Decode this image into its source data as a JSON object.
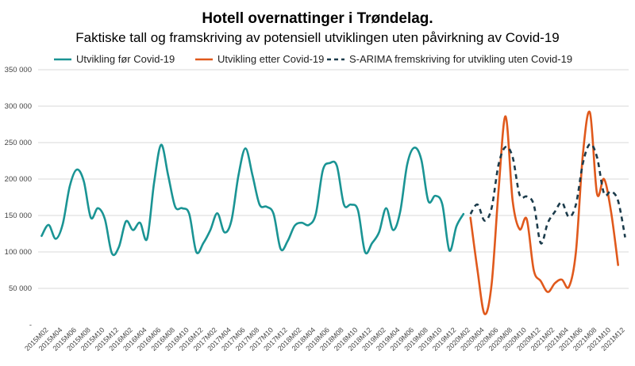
{
  "chart_data": {
    "type": "line",
    "title": "Hotell overnattinger i Trøndelag.",
    "subtitle": "Faktiske tall og framskriving av potensiell utviklingen uten påvirkning av Covid-19",
    "xlabel": "",
    "ylabel": "",
    "ylim": [
      0,
      350000
    ],
    "yticks": [
      0,
      50000,
      100000,
      150000,
      200000,
      250000,
      300000,
      350000
    ],
    "ytick_labels": [
      "-",
      "50 000",
      "100 000",
      "150 000",
      "200 000",
      "250 000",
      "300 000",
      "350 000"
    ],
    "grid": true,
    "legend_position": "top",
    "colors": {
      "before": "#1a9494",
      "after": "#e0591c",
      "forecast": "#1b3b4b",
      "grid": "#d9d9d9"
    },
    "x_categories": [
      "2015M01",
      "2015M02",
      "2015M03",
      "2015M04",
      "2015M05",
      "2015M06",
      "2015M07",
      "2015M08",
      "2015M09",
      "2015M10",
      "2015M11",
      "2015M12",
      "2016M01",
      "2016M02",
      "2016M03",
      "2016M04",
      "2016M05",
      "2016M06",
      "2016M07",
      "2016M08",
      "2016M09",
      "2016M10",
      "2016M11",
      "2016M12",
      "2017M01",
      "2017M02",
      "2017M03",
      "2017M04",
      "2017M05",
      "2017M06",
      "2017M07",
      "2017M08",
      "2017M09",
      "2017M10",
      "2017M11",
      "2017M12",
      "2018M01",
      "2018M02",
      "2018M03",
      "2018M04",
      "2018M05",
      "2018M06",
      "2018M07",
      "2018M08",
      "2018M09",
      "2018M10",
      "2018M11",
      "2018M12",
      "2019M01",
      "2019M02",
      "2019M03",
      "2019M04",
      "2019M05",
      "2019M06",
      "2019M07",
      "2019M08",
      "2019M09",
      "2019M10",
      "2019M11",
      "2019M12",
      "2020M01",
      "2020M02",
      "2020M03",
      "2020M04",
      "2020M05",
      "2020M06",
      "2020M07",
      "2020M08",
      "2020M09",
      "2020M10",
      "2020M11",
      "2020M12",
      "2021M01",
      "2021M02",
      "2021M03",
      "2021M04",
      "2021M05",
      "2021M06",
      "2021M07",
      "2021M08",
      "2021M09",
      "2021M10",
      "2021M11",
      "2021M12"
    ],
    "x_tick_labels": [
      "2015M02",
      "2015M04",
      "2015M06",
      "2015M08",
      "2015M10",
      "2015M12",
      "2016M02",
      "2016M04",
      "2016M06",
      "2016M08",
      "2016M10",
      "2016M12",
      "2017M02",
      "2017M04",
      "2017M06",
      "2017M08",
      "2017M10",
      "2017M12",
      "2018M02",
      "2018M04",
      "2018M06",
      "2018M08",
      "2018M10",
      "2018M12",
      "2019M02",
      "2019M04",
      "2019M06",
      "2019M08",
      "2019M10",
      "2019M12",
      "2020M02",
      "2020M04",
      "2020M06",
      "2020M08",
      "2020M10",
      "2020M12",
      "2021M02",
      "2021M04",
      "2021M06",
      "2021M08",
      "2021M10",
      "2021M12"
    ],
    "series": [
      {
        "name": "Utvikling før Covid-19",
        "color_key": "before",
        "style": "solid",
        "start": "2015M01",
        "values": [
          122000,
          137000,
          118000,
          138000,
          190000,
          213000,
          197000,
          147000,
          160000,
          145000,
          98000,
          107000,
          142000,
          130000,
          140000,
          118000,
          195000,
          247000,
          205000,
          162000,
          160000,
          152000,
          100000,
          112000,
          130000,
          153000,
          127000,
          143000,
          205000,
          242000,
          205000,
          165000,
          162000,
          152000,
          104000,
          115000,
          136000,
          140000,
          137000,
          152000,
          212000,
          222000,
          218000,
          165000,
          165000,
          157000,
          100000,
          112000,
          127000,
          160000,
          130000,
          155000,
          220000,
          243000,
          227000,
          170000,
          177000,
          165000,
          102000,
          135000,
          152000
        ]
      },
      {
        "name": "Utvikling  etter Covid-19",
        "color_key": "after",
        "style": "solid",
        "start": "2020M02",
        "values": [
          147000,
          75000,
          15000,
          55000,
          185000,
          286000,
          170000,
          131000,
          145000,
          75000,
          60000,
          45000,
          57000,
          62000,
          52000,
          100000,
          235000,
          291000,
          180000,
          200000,
          155000,
          82000
        ]
      },
      {
        "name": "S-ARIMA  fremskriving for utvikling uten Covid-19",
        "color_key": "forecast",
        "style": "dashed",
        "start": "2020M02",
        "values": [
          152000,
          165000,
          143000,
          160000,
          220000,
          244000,
          230000,
          178000,
          176000,
          165000,
          112000,
          140000,
          155000,
          168000,
          148000,
          165000,
          222000,
          248000,
          230000,
          180000,
          183000,
          170000,
          120000
        ]
      }
    ]
  }
}
